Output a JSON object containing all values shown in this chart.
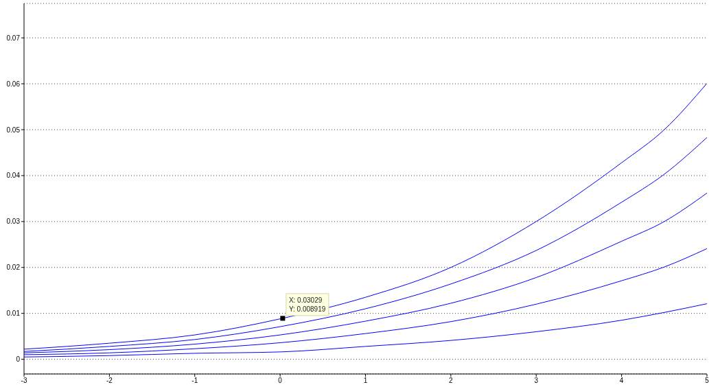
{
  "chart_data": {
    "type": "line",
    "x": [
      -3,
      -2,
      -1,
      0,
      1,
      2,
      3,
      4,
      4.5,
      5
    ],
    "series": [
      {
        "color": "#0000ff",
        "values": [
          0.0022,
          0.0035,
          0.0053,
          0.0088,
          0.0135,
          0.02,
          0.03,
          0.0428,
          0.05,
          0.0601
        ]
      },
      {
        "color": "#0000ff",
        "values": [
          0.0017,
          0.0028,
          0.0043,
          0.0071,
          0.011,
          0.0164,
          0.0237,
          0.0342,
          0.0403,
          0.0483
        ]
      },
      {
        "color": "#0000ff",
        "values": [
          0.0014,
          0.0021,
          0.0033,
          0.0053,
          0.0083,
          0.0122,
          0.0178,
          0.0257,
          0.03,
          0.0362
        ]
      },
      {
        "color": "#0000ff",
        "values": [
          0.001,
          0.0014,
          0.0023,
          0.0036,
          0.0056,
          0.0082,
          0.012,
          0.0171,
          0.0201,
          0.0241
        ]
      },
      {
        "color": "#0000ff",
        "values": [
          0.0005,
          0.0008,
          0.0013,
          0.0016,
          0.0028,
          0.0041,
          0.006,
          0.0085,
          0.0102,
          0.0121
        ]
      }
    ],
    "xlim": [
      -3,
      5
    ],
    "xticks": [
      -3,
      -2,
      -1,
      0,
      1,
      2,
      3,
      4,
      5
    ],
    "ylim": [
      -0.0032,
      0.0775
    ],
    "yticks": [
      0,
      0.01,
      0.02,
      0.03,
      0.04,
      0.05,
      0.06,
      0.07
    ],
    "grid": "y",
    "annotations": [
      {
        "text": "X: 0.03029\nY: 0.008919",
        "x": 0.03029,
        "y": 0.008919
      }
    ]
  }
}
